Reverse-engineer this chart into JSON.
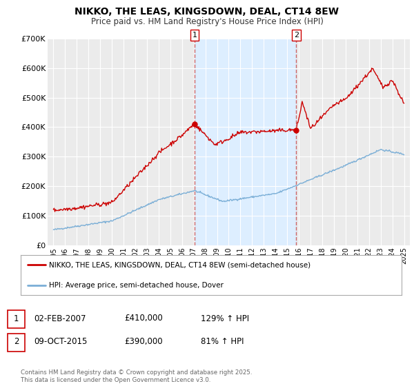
{
  "title": "NIKKO, THE LEAS, KINGSDOWN, DEAL, CT14 8EW",
  "subtitle": "Price paid vs. HM Land Registry's House Price Index (HPI)",
  "bg_color": "#ffffff",
  "plot_bg_color": "#ebebeb",
  "grid_color": "#ffffff",
  "red_color": "#cc0000",
  "blue_color": "#7aaed6",
  "shade_color": "#ddeeff",
  "vline1_x": 2007.085,
  "vline2_x": 2015.77,
  "marker1_y": 410000,
  "marker2_y": 390000,
  "legend_label_red": "NIKKO, THE LEAS, KINGSDOWN, DEAL, CT14 8EW (semi-detached house)",
  "legend_label_blue": "HPI: Average price, semi-detached house, Dover",
  "annotation1": {
    "num": "1",
    "date": "02-FEB-2007",
    "price": "£410,000",
    "hpi": "129% ↑ HPI"
  },
  "annotation2": {
    "num": "2",
    "date": "09-OCT-2015",
    "price": "£390,000",
    "hpi": "81% ↑ HPI"
  },
  "footer": "Contains HM Land Registry data © Crown copyright and database right 2025.\nThis data is licensed under the Open Government Licence v3.0.",
  "ylim": [
    0,
    700000
  ],
  "xlim": [
    1994.5,
    2025.5
  ],
  "yticks": [
    0,
    100000,
    200000,
    300000,
    400000,
    500000,
    600000,
    700000
  ],
  "ytick_labels": [
    "£0",
    "£100K",
    "£200K",
    "£300K",
    "£400K",
    "£500K",
    "£600K",
    "£700K"
  ],
  "xticks": [
    1995,
    1996,
    1997,
    1998,
    1999,
    2000,
    2001,
    2002,
    2003,
    2004,
    2005,
    2006,
    2007,
    2008,
    2009,
    2010,
    2011,
    2012,
    2013,
    2014,
    2015,
    2016,
    2017,
    2018,
    2019,
    2020,
    2021,
    2022,
    2023,
    2024,
    2025
  ]
}
